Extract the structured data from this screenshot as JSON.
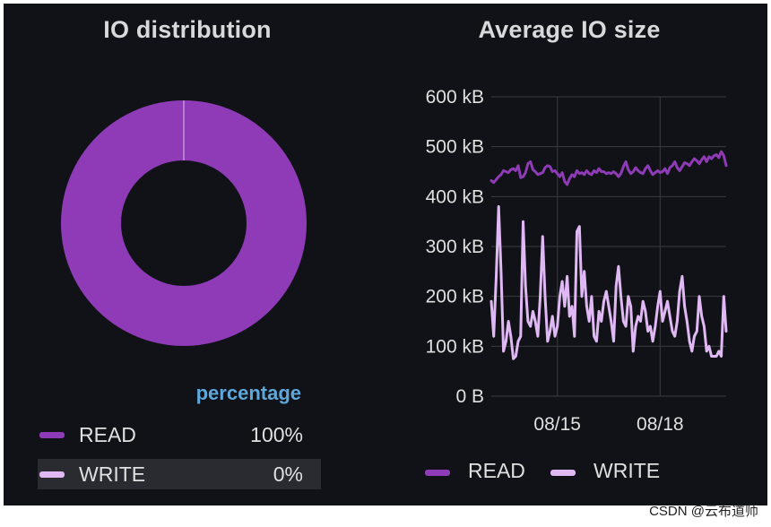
{
  "colors": {
    "background": "#111217",
    "read": "#8f3bb8",
    "write": "#e0b9f4",
    "text": "#d8d9da",
    "grid": "#3a3b40",
    "legend_header": "#5fa8dc"
  },
  "io_distribution": {
    "title": "IO distribution",
    "legend_header": "percentage",
    "chart_data": {
      "type": "pie",
      "title": "IO distribution",
      "categories": [
        "READ",
        "WRITE"
      ],
      "values": [
        100,
        0
      ],
      "value_labels": [
        "100%",
        "0%"
      ],
      "donut": true
    }
  },
  "avg_io_size": {
    "title": "Average IO size",
    "chart_data": {
      "type": "line",
      "title": "Average IO size",
      "xlabel": "",
      "ylabel": "",
      "ylim": [
        0,
        600
      ],
      "y_ticks": [
        0,
        100,
        200,
        300,
        400,
        500,
        600
      ],
      "y_tick_labels": [
        "0 B",
        "100 kB",
        "200 kB",
        "300 kB",
        "400 kB",
        "500 kB",
        "600 kB"
      ],
      "x_ticks": [
        27,
        69
      ],
      "x_tick_labels": [
        "08/15",
        "08/18"
      ],
      "xlim": [
        0,
        96
      ],
      "grid": true,
      "legend": "bottom",
      "x": [
        0,
        1,
        2,
        3,
        4,
        5,
        6,
        7,
        8,
        9,
        10,
        11,
        12,
        13,
        14,
        15,
        16,
        17,
        18,
        19,
        20,
        21,
        22,
        23,
        24,
        25,
        26,
        27,
        28,
        29,
        30,
        31,
        32,
        33,
        34,
        35,
        36,
        37,
        38,
        39,
        40,
        41,
        42,
        43,
        44,
        45,
        46,
        47,
        48,
        49,
        50,
        51,
        52,
        53,
        54,
        55,
        56,
        57,
        58,
        59,
        60,
        61,
        62,
        63,
        64,
        65,
        66,
        67,
        68,
        69,
        70,
        71,
        72,
        73,
        74,
        75,
        76,
        77,
        78,
        79,
        80,
        81,
        82,
        83,
        84,
        85,
        86,
        87,
        88,
        89,
        90,
        91,
        92,
        93,
        94,
        95,
        96
      ],
      "series": [
        {
          "name": "READ",
          "values": [
            432,
            428,
            434,
            440,
            444,
            452,
            450,
            448,
            454,
            456,
            452,
            462,
            438,
            440,
            448,
            466,
            470,
            454,
            450,
            444,
            446,
            448,
            458,
            462,
            460,
            450,
            452,
            446,
            440,
            448,
            430,
            424,
            436,
            444,
            440,
            452,
            446,
            448,
            444,
            452,
            446,
            444,
            452,
            448,
            456,
            450,
            450,
            446,
            448,
            446,
            450,
            446,
            440,
            446,
            460,
            470,
            454,
            446,
            450,
            458,
            452,
            448,
            446,
            456,
            462,
            452,
            444,
            448,
            452,
            448,
            450,
            456,
            446,
            458,
            462,
            470,
            458,
            452,
            460,
            468,
            466,
            462,
            470,
            476,
            472,
            466,
            474,
            480,
            470,
            480,
            476,
            482,
            484,
            478,
            490,
            482,
            462
          ]
        },
        {
          "name": "WRITE",
          "values": [
            190,
            120,
            240,
            380,
            250,
            90,
            110,
            150,
            120,
            75,
            80,
            110,
            120,
            350,
            220,
            150,
            140,
            170,
            150,
            120,
            200,
            320,
            200,
            110,
            130,
            160,
            120,
            140,
            200,
            230,
            180,
            240,
            160,
            180,
            120,
            330,
            340,
            200,
            250,
            180,
            150,
            200,
            120,
            110,
            170,
            150,
            190,
            210,
            180,
            150,
            110,
            220,
            260,
            200,
            150,
            140,
            200,
            180,
            90,
            140,
            160,
            150,
            190,
            170,
            130,
            140,
            110,
            140,
            180,
            210,
            150,
            170,
            190,
            160,
            130,
            120,
            150,
            210,
            240,
            180,
            150,
            110,
            90,
            120,
            130,
            200,
            160,
            140,
            90,
            100,
            80,
            80,
            80,
            90,
            80,
            200,
            130
          ]
        }
      ]
    }
  },
  "legend": {
    "read_label": "READ",
    "write_label": "WRITE"
  },
  "watermark": "CSDN @云布道师"
}
